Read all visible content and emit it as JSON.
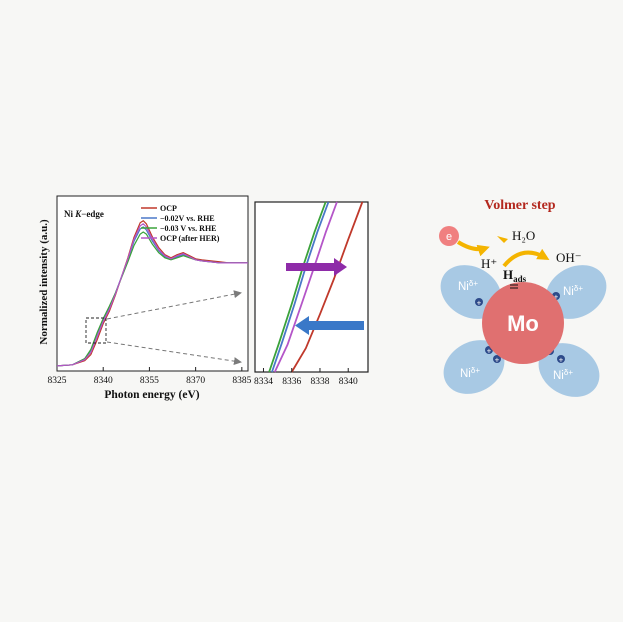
{
  "chart_data": [
    {
      "type": "line",
      "panel_label": "Ni K-edge",
      "panel_label_parts": [
        "Ni ",
        "K",
        "−edge"
      ],
      "xlabel": "Photon energy (eV)",
      "ylabel": "Normalized intensity (a.u.)",
      "xlim": [
        8325,
        8387
      ],
      "xticks": [
        "8325",
        "8340",
        "8355",
        "8370",
        "8385"
      ],
      "xtick_values": [
        8325,
        8340,
        8355,
        8370,
        8385
      ],
      "ylim": [
        0,
        1.7
      ],
      "legend_position": "top-right",
      "series": [
        {
          "name": "OCP",
          "color": "#c0392b",
          "x": [
            8325,
            8330,
            8334,
            8336,
            8338,
            8340,
            8342,
            8344,
            8346,
            8348,
            8350,
            8352,
            8353,
            8354,
            8356,
            8358,
            8360,
            8362,
            8364,
            8366,
            8368,
            8370,
            8372,
            8375,
            8378,
            8381,
            8384,
            8387
          ],
          "y": [
            0.05,
            0.06,
            0.1,
            0.16,
            0.3,
            0.46,
            0.58,
            0.74,
            0.92,
            1.1,
            1.3,
            1.44,
            1.46,
            1.43,
            1.3,
            1.2,
            1.13,
            1.1,
            1.13,
            1.15,
            1.12,
            1.09,
            1.08,
            1.07,
            1.06,
            1.05,
            1.05,
            1.05
          ]
        },
        {
          "name": "−0.02V vs. RHE",
          "color": "#4a78c8",
          "x": [
            8325,
            8330,
            8334,
            8336,
            8338,
            8340,
            8342,
            8344,
            8346,
            8348,
            8350,
            8352,
            8353,
            8354,
            8356,
            8358,
            8360,
            8362,
            8364,
            8366,
            8368,
            8370,
            8372,
            8375,
            8378,
            8381,
            8384,
            8387
          ],
          "y": [
            0.05,
            0.06,
            0.12,
            0.2,
            0.36,
            0.5,
            0.62,
            0.76,
            0.92,
            1.08,
            1.26,
            1.38,
            1.4,
            1.37,
            1.26,
            1.17,
            1.11,
            1.09,
            1.11,
            1.13,
            1.11,
            1.08,
            1.07,
            1.06,
            1.05,
            1.05,
            1.05,
            1.05
          ]
        },
        {
          "name": "−0.03 V vs. RHE",
          "color": "#3aa23a",
          "x": [
            8325,
            8330,
            8334,
            8336,
            8338,
            8340,
            8342,
            8344,
            8346,
            8348,
            8350,
            8352,
            8353,
            8354,
            8356,
            8358,
            8360,
            8362,
            8364,
            8366,
            8368,
            8370,
            8372,
            8375,
            8378,
            8381,
            8384,
            8387
          ],
          "y": [
            0.05,
            0.06,
            0.12,
            0.21,
            0.37,
            0.51,
            0.63,
            0.76,
            0.91,
            1.06,
            1.22,
            1.33,
            1.35,
            1.33,
            1.23,
            1.15,
            1.1,
            1.08,
            1.1,
            1.12,
            1.1,
            1.08,
            1.07,
            1.06,
            1.05,
            1.05,
            1.05,
            1.05
          ]
        },
        {
          "name": "OCP (after HER)",
          "color": "#b455c8",
          "x": [
            8325,
            8330,
            8334,
            8336,
            8338,
            8340,
            8342,
            8344,
            8346,
            8348,
            8350,
            8352,
            8353,
            8354,
            8356,
            8358,
            8360,
            8362,
            8364,
            8366,
            8368,
            8370,
            8372,
            8375,
            8378,
            8381,
            8384,
            8387
          ],
          "y": [
            0.05,
            0.06,
            0.11,
            0.18,
            0.33,
            0.48,
            0.6,
            0.75,
            0.92,
            1.09,
            1.28,
            1.41,
            1.43,
            1.4,
            1.28,
            1.18,
            1.12,
            1.09,
            1.12,
            1.14,
            1.11,
            1.08,
            1.07,
            1.06,
            1.05,
            1.05,
            1.05,
            1.05
          ]
        }
      ]
    },
    {
      "type": "line",
      "title": "",
      "xlim": [
        8333.4,
        8341.4
      ],
      "xticks": [
        "8334",
        "8336",
        "8338",
        "8340"
      ],
      "xtick_values": [
        8334,
        8336,
        8338,
        8340
      ],
      "ylim": [
        0.0,
        1.0
      ],
      "series": [
        {
          "name": "OCP",
          "color": "#c0392b",
          "x": [
            8336.0,
            8337.0,
            8338.0,
            8339.0,
            8340.0,
            8341.0
          ],
          "y": [
            0.0,
            0.14,
            0.34,
            0.55,
            0.78,
            1.0
          ]
        },
        {
          "name": "−0.02V vs. RHE",
          "color": "#4a78c8",
          "x": [
            8334.6,
            8335.3,
            8336.2,
            8337.0,
            8337.8,
            8338.6
          ],
          "y": [
            0.0,
            0.17,
            0.4,
            0.62,
            0.82,
            1.0
          ]
        },
        {
          "name": "−0.03 V vs. RHE",
          "color": "#3aa23a",
          "x": [
            8334.4,
            8335.1,
            8336.0,
            8336.8,
            8337.6,
            8338.4
          ],
          "y": [
            0.0,
            0.17,
            0.4,
            0.62,
            0.82,
            1.0
          ]
        },
        {
          "name": "OCP (after HER)",
          "color": "#b455c8",
          "x": [
            8334.8,
            8335.7,
            8336.7,
            8337.6,
            8338.4,
            8339.2
          ],
          "y": [
            0.0,
            0.16,
            0.4,
            0.62,
            0.82,
            1.0
          ]
        }
      ],
      "arrows": [
        {
          "direction": "right",
          "color": "#8e2ba8"
        },
        {
          "direction": "left",
          "color": "#3a78c8"
        }
      ]
    }
  ],
  "diagram": {
    "title": "Volmer step",
    "electron": "e",
    "proton": "H⁺",
    "water": "H₂O",
    "hydroxide": "OH⁻",
    "hads_main": "H",
    "hads_sub": "ads",
    "center": "Mo",
    "ni_base": "Ni",
    "ni_sup": "δ+",
    "plus": "+",
    "colors": {
      "title": "#b3281e",
      "mo": "#e07070",
      "ni": "#a8c9e4",
      "electron": "#f08080",
      "arrow": "#f4b400"
    }
  }
}
